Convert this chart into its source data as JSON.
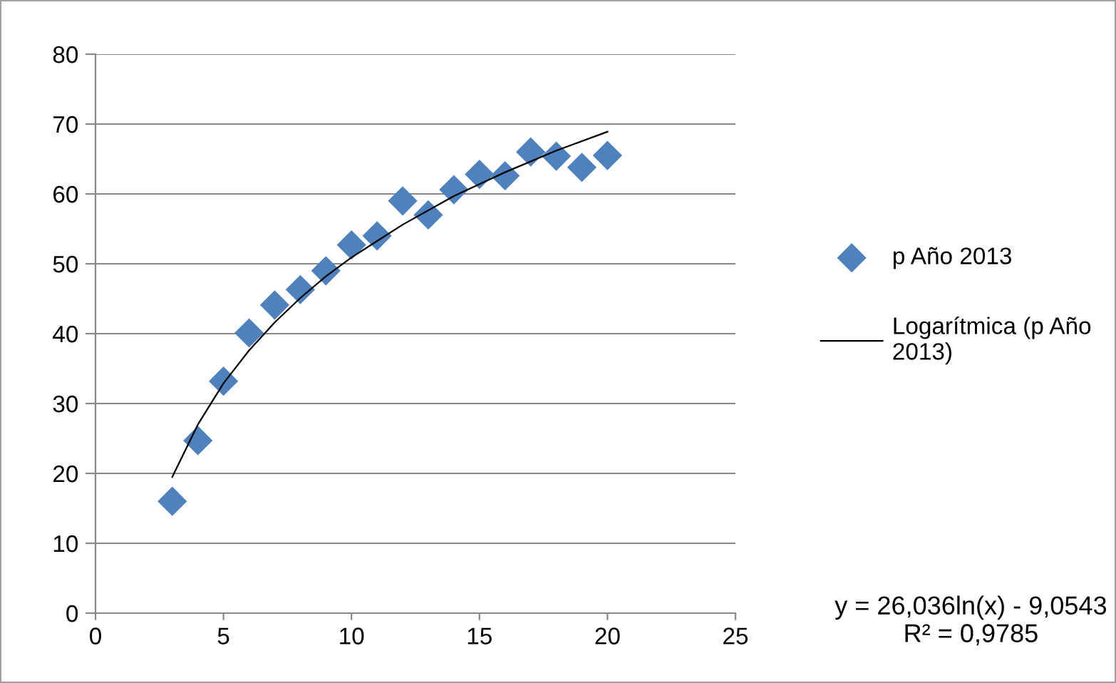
{
  "chart_data": {
    "type": "scatter",
    "xlim": [
      0,
      25
    ],
    "xticks": [
      0,
      5,
      10,
      15,
      20,
      25
    ],
    "ylim": [
      0,
      80
    ],
    "yticks": [
      0,
      10,
      20,
      30,
      40,
      50,
      60,
      70,
      80
    ],
    "grid": "y",
    "legend": "right",
    "series": [
      {
        "name": "p Año 2013",
        "color": "#4f81bd",
        "marker": "diamond",
        "x": [
          3,
          4,
          5,
          6,
          7,
          8,
          9,
          10,
          11,
          12,
          13,
          14,
          15,
          16,
          17,
          18,
          19,
          20
        ],
        "values": [
          16,
          24.7,
          33.2,
          40.1,
          44.1,
          46.3,
          49,
          52.7,
          54,
          59,
          57,
          60.6,
          62.8,
          62.6,
          66,
          65.4,
          63.8,
          65.5
        ]
      },
      {
        "name": "Logarítmica (p Año 2013)",
        "type": "line",
        "color": "#000000",
        "marker": "none",
        "line_style": "solid",
        "x": [
          3,
          4,
          5,
          6,
          7,
          8,
          9,
          10,
          12,
          14,
          16,
          18,
          20
        ],
        "values": [
          19.5,
          27,
          32.9,
          37.6,
          41.6,
          45.1,
          48.2,
          50.9,
          55.6,
          59.7,
          63.1,
          66.2,
          68.9
        ]
      }
    ],
    "annotations": [
      "y = 26,036ln(x) - 9,0543\nR² = 0,9785"
    ]
  }
}
